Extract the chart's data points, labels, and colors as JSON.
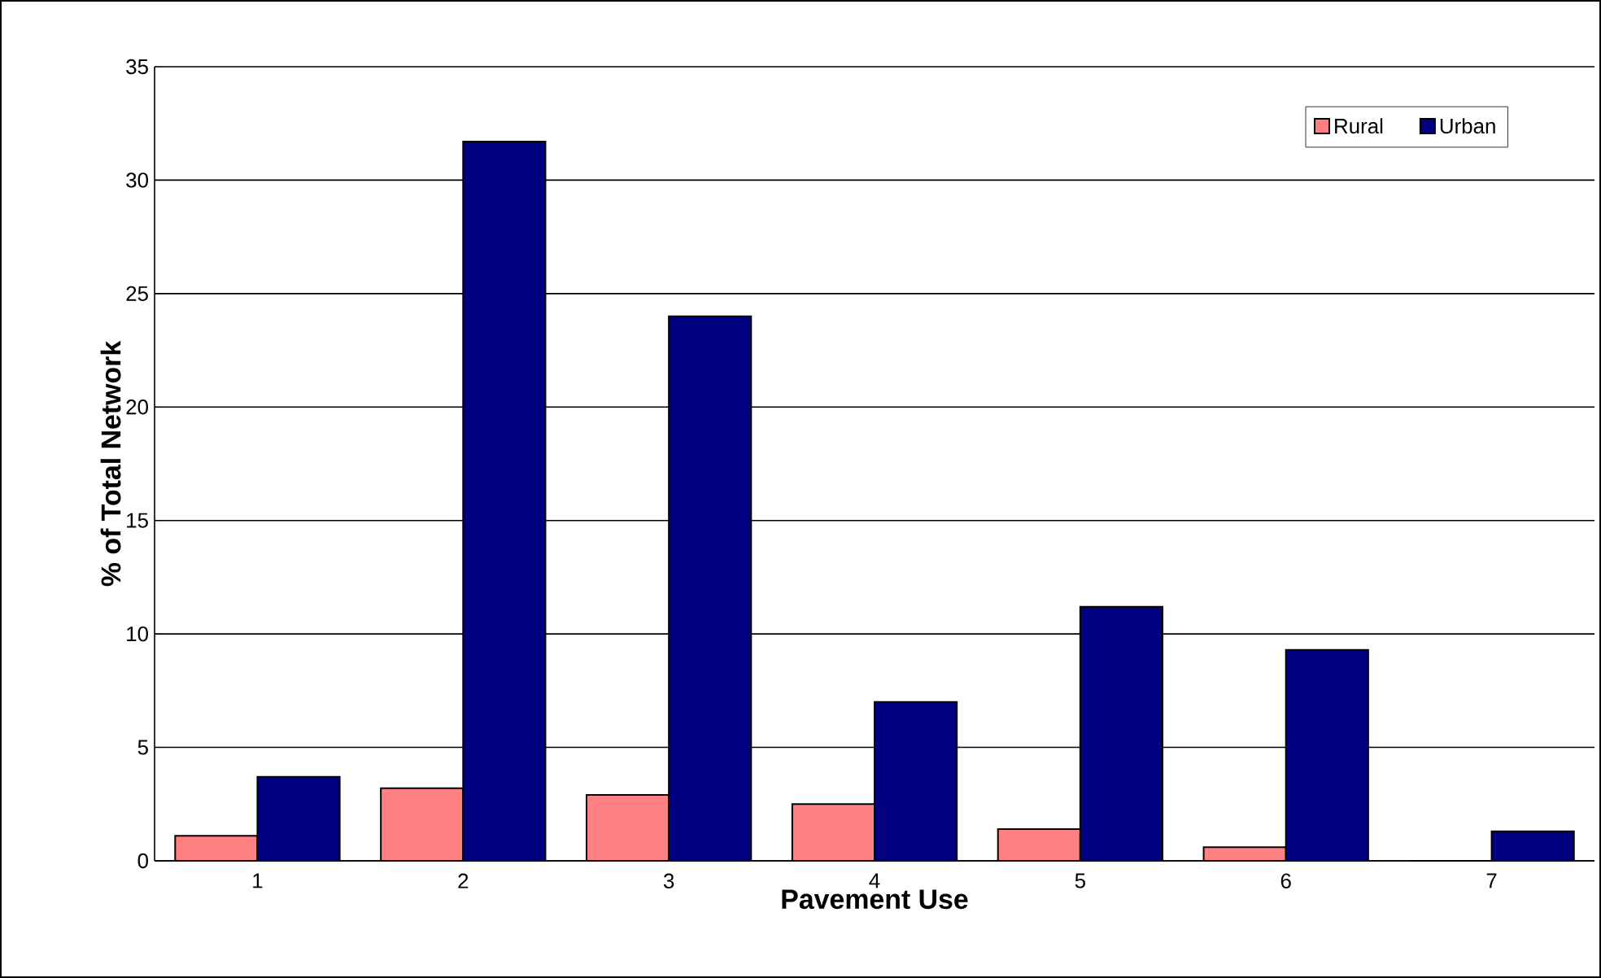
{
  "chart_data": {
    "type": "bar",
    "xlabel": "Pavement Use",
    "ylabel": "% of Total Network",
    "categories": [
      "1",
      "2",
      "3",
      "4",
      "5",
      "6",
      "7"
    ],
    "series": [
      {
        "name": "Rural",
        "color": "#ff8080",
        "values": [
          1.1,
          3.2,
          2.9,
          2.5,
          1.4,
          0.6,
          0
        ]
      },
      {
        "name": "Urban",
        "color": "#000080",
        "values": [
          3.7,
          31.7,
          24.0,
          7.0,
          11.2,
          9.3,
          1.3
        ]
      }
    ],
    "ylim": [
      0,
      35
    ],
    "yticks": [
      0,
      5,
      10,
      15,
      20,
      25,
      30,
      35
    ],
    "grid": "y",
    "legend": "top right"
  }
}
